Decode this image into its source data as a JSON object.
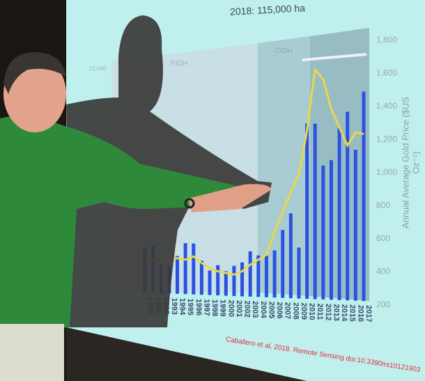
{
  "slide": {
    "title": "2018: 115,000 ha",
    "band_labels": [
      "PIDH",
      "CIDH"
    ],
    "left_axis_tick": "12,000",
    "right_axis_label": "Annual Average Gold Price ($US Oz⁻¹)",
    "citation": "Caballero et al, 2018. Remote Sensing doi:10.3390/rs10121903",
    "colors": {
      "screen": "#bff0ee",
      "bars": "#2a52e0",
      "line": "#e8d84a",
      "citation": "#e0303a",
      "shirt": "#2e8a3a"
    }
  },
  "chart_data": {
    "type": "bar",
    "categories": [
      "1990",
      "1991",
      "1992",
      "1993",
      "1994",
      "1995",
      "1996",
      "1997",
      "1998",
      "1999",
      "2000",
      "2001",
      "2002",
      "2003",
      "2004",
      "2005",
      "2006",
      "2007",
      "2008",
      "2009",
      "2010",
      "2011",
      "2012",
      "2013",
      "2014",
      "2015",
      "2016",
      "2017"
    ],
    "series": [
      {
        "type": "bar",
        "axis": "left",
        "values": [
          2400,
          2500,
          1500,
          1500,
          2000,
          2700,
          2700,
          1800,
          1300,
          1600,
          1300,
          1600,
          1800,
          2400,
          2200,
          2200,
          2500,
          3600,
          4500,
          2700,
          9300,
          9300,
          7100,
          7400,
          9100,
          10000,
          8000,
          11100
        ]
      },
      {
        "type": "line",
        "axis": "right",
        "values": [
          480,
          470,
          455,
          460,
          480,
          470,
          490,
          450,
          420,
          400,
          390,
          380,
          400,
          440,
          470,
          500,
          640,
          760,
          880,
          980,
          1250,
          1620,
          1560,
          1380,
          1270,
          1160,
          1240,
          1230
        ]
      }
    ],
    "right_axis": {
      "ticks": [
        "200",
        "400",
        "600",
        "800",
        "1,000",
        "1,200",
        "1,400",
        "1,600",
        "1,800"
      ],
      "range": [
        200,
        1800
      ]
    },
    "left_axis": {
      "range": [
        0,
        12000
      ]
    }
  }
}
